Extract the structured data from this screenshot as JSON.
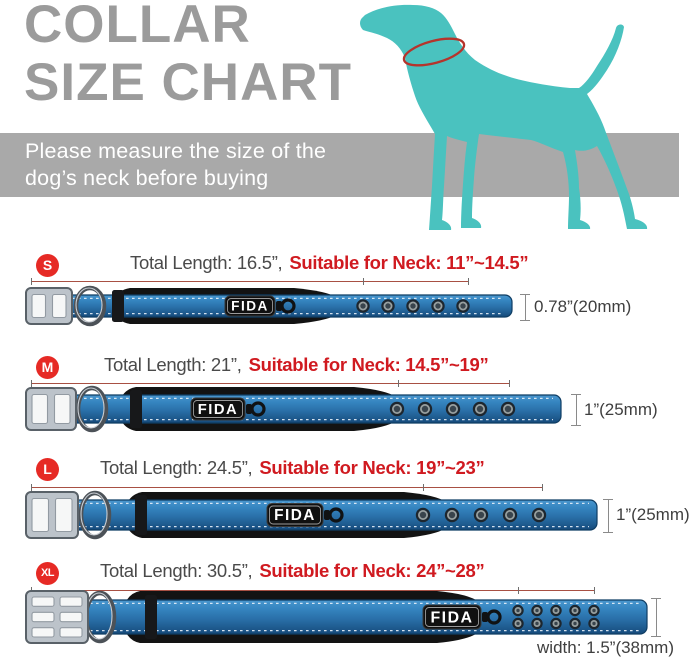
{
  "title": {
    "line1": "COLLAR",
    "line2": "SIZE CHART"
  },
  "banner": {
    "line1": "Please measure the size of the",
    "line2": "dog’s neck before buying"
  },
  "brand": "FIDA",
  "colors": {
    "title_gray": "#9b9b9b",
    "banner_gray": "#a9a9a9",
    "dog_teal": "#4ac2bf",
    "accent_red": "#d01a20",
    "badge_red": "#e62a25",
    "collar_blue": "#2a70a9"
  },
  "rows": [
    {
      "size": "S",
      "total_length": "Total Length: 16.5”,",
      "neck": "Suitable for Neck: 11”~14.5”",
      "width_label": "0.78”(20mm)"
    },
    {
      "size": "M",
      "total_length": "Total Length: 21”,",
      "neck": "Suitable for Neck: 14.5”~19”",
      "width_label": "1”(25mm)"
    },
    {
      "size": "L",
      "total_length": "Total Length: 24.5”,",
      "neck": "Suitable for Neck: 19”~23”",
      "width_label": "1”(25mm)"
    },
    {
      "size": "XL",
      "total_length": "Total Length: 30.5”,",
      "neck": "Suitable for Neck: 24”~28”",
      "width_label": "width: 1.5”(38mm)"
    }
  ],
  "chart_data": {
    "type": "table",
    "title": "COLLAR SIZE CHART",
    "note": "Please measure the size of the dog’s neck before buying",
    "columns": [
      "Size",
      "Total Length",
      "Suitable for Neck",
      "Width"
    ],
    "rows": [
      [
        "S",
        "16.5”",
        "11”~14.5”",
        "0.78” (20mm)"
      ],
      [
        "M",
        "21”",
        "14.5”~19”",
        "1” (25mm)"
      ],
      [
        "L",
        "24.5”",
        "19”~23”",
        "1” (25mm)"
      ],
      [
        "XL",
        "30.5”",
        "24”~28”",
        "1.5” (38mm)"
      ]
    ]
  }
}
